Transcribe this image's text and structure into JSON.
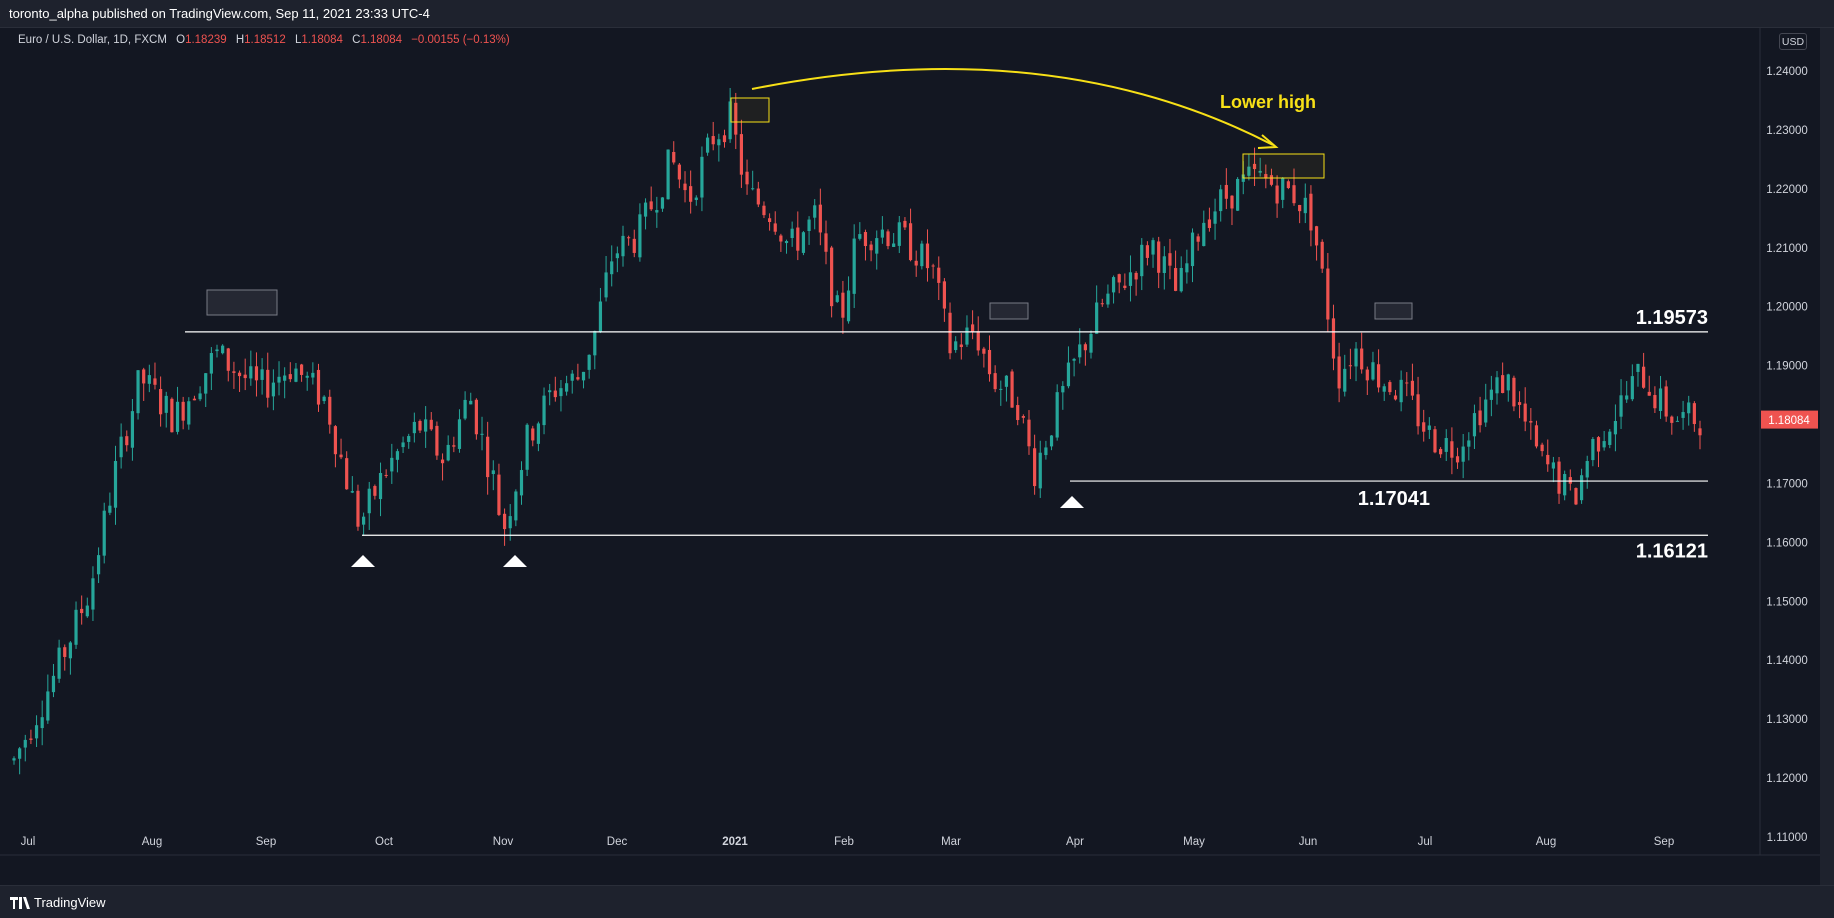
{
  "header": {
    "publish_line": "toronto_alpha published on TradingView.com, Sep 11, 2021 23:33 UTC-4"
  },
  "legend": {
    "symbol": "Euro / U.S. Dollar, 1D, FXCM",
    "open_label": "O",
    "open": "1.18239",
    "high_label": "H",
    "high": "1.18512",
    "low_label": "L",
    "low": "1.18084",
    "close_label": "C",
    "close": "1.18084",
    "change": "−0.00155 (−0.13%)"
  },
  "currency_badge": "USD",
  "footer": {
    "brand": "TradingView"
  },
  "colors": {
    "background": "#131722",
    "up": "#26a69a",
    "down": "#ef5350",
    "annotation": "#f7e017",
    "level_line": "#ffffff",
    "price_tag": "#ef5350"
  },
  "chart_data": {
    "type": "candlestick",
    "title": "",
    "instrument": "Euro / U.S. Dollar, 1D, FXCM",
    "xlabel": "",
    "ylabel": "",
    "ylim": [
      1.106,
      1.247
    ],
    "y_ticks": [
      "1.24000",
      "1.23000",
      "1.22000",
      "1.21000",
      "1.20000",
      "1.19000",
      "1.18000",
      "1.17000",
      "1.16000",
      "1.15000",
      "1.14000",
      "1.13000",
      "1.12000",
      "1.11000"
    ],
    "x_ticks": [
      "Jul",
      "Aug",
      "Sep",
      "Oct",
      "Nov",
      "Dec",
      "2021",
      "Feb",
      "Mar",
      "Apr",
      "May",
      "Jun",
      "Jul",
      "Aug",
      "Sep"
    ],
    "grid": false,
    "last_price": "1.18084",
    "levels": [
      {
        "label": "1.19573",
        "value": 1.19573
      },
      {
        "label": "1.17041",
        "value": 1.17041
      },
      {
        "label": "1.16121",
        "value": 1.16121
      }
    ],
    "annotations": [
      {
        "text": "Lower high",
        "type": "arrow-label"
      }
    ],
    "price_path": [
      [
        0,
        1.123
      ],
      [
        0.025,
        1.138
      ],
      [
        0.045,
        1.152
      ],
      [
        0.06,
        1.172
      ],
      [
        0.075,
        1.188
      ],
      [
        0.095,
        1.181
      ],
      [
        0.12,
        1.192
      ],
      [
        0.145,
        1.186
      ],
      [
        0.165,
        1.19
      ],
      [
        0.185,
        1.184
      ],
      [
        0.195,
        1.173
      ],
      [
        0.205,
        1.163
      ],
      [
        0.22,
        1.172
      ],
      [
        0.24,
        1.18
      ],
      [
        0.255,
        1.174
      ],
      [
        0.27,
        1.185
      ],
      [
        0.285,
        1.17
      ],
      [
        0.29,
        1.162
      ],
      [
        0.305,
        1.178
      ],
      [
        0.32,
        1.186
      ],
      [
        0.335,
        1.188
      ],
      [
        0.345,
        1.196
      ],
      [
        0.355,
        1.209
      ],
      [
        0.37,
        1.212
      ],
      [
        0.39,
        1.225
      ],
      [
        0.4,
        1.218
      ],
      [
        0.415,
        1.229
      ],
      [
        0.425,
        1.232
      ],
      [
        0.435,
        1.219
      ],
      [
        0.45,
        1.216
      ],
      [
        0.46,
        1.21
      ],
      [
        0.475,
        1.215
      ],
      [
        0.49,
        1.197
      ],
      [
        0.5,
        1.212
      ],
      [
        0.515,
        1.213
      ],
      [
        0.53,
        1.211
      ],
      [
        0.545,
        1.206
      ],
      [
        0.555,
        1.193
      ],
      [
        0.57,
        1.196
      ],
      [
        0.58,
        1.188
      ],
      [
        0.595,
        1.184
      ],
      [
        0.605,
        1.172
      ],
      [
        0.615,
        1.18
      ],
      [
        0.63,
        1.191
      ],
      [
        0.645,
        1.2
      ],
      [
        0.66,
        1.205
      ],
      [
        0.675,
        1.211
      ],
      [
        0.69,
        1.202
      ],
      [
        0.705,
        1.215
      ],
      [
        0.72,
        1.219
      ],
      [
        0.735,
        1.222
      ],
      [
        0.745,
        1.221
      ],
      [
        0.76,
        1.219
      ],
      [
        0.77,
        1.215
      ],
      [
        0.78,
        1.198
      ],
      [
        0.785,
        1.188
      ],
      [
        0.795,
        1.193
      ],
      [
        0.81,
        1.188
      ],
      [
        0.825,
        1.185
      ],
      [
        0.84,
        1.178
      ],
      [
        0.855,
        1.176
      ],
      [
        0.87,
        1.183
      ],
      [
        0.885,
        1.188
      ],
      [
        0.895,
        1.181
      ],
      [
        0.905,
        1.174
      ],
      [
        0.915,
        1.171
      ],
      [
        0.925,
        1.167
      ],
      [
        0.935,
        1.176
      ],
      [
        0.95,
        1.182
      ],
      [
        0.965,
        1.189
      ],
      [
        0.975,
        1.184
      ],
      [
        0.985,
        1.181
      ]
    ]
  }
}
